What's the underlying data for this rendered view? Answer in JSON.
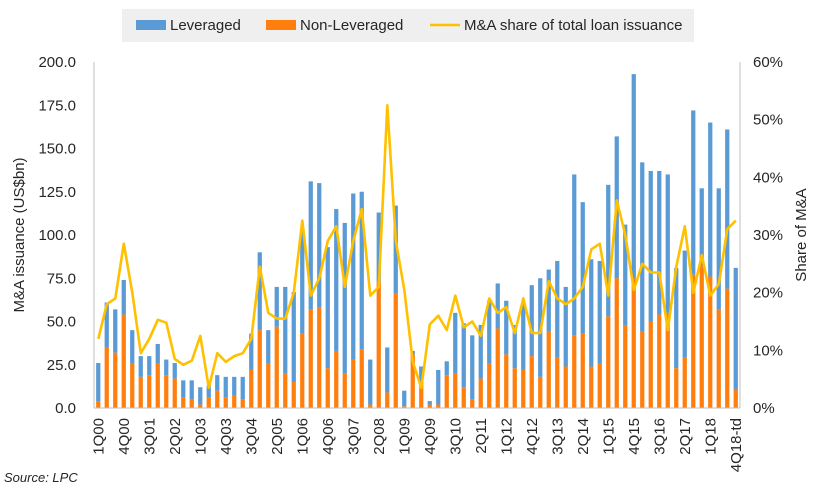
{
  "source": "Source: LPC",
  "chart_data": {
    "type": "bar",
    "stacked": true,
    "legend_position": "top",
    "legend": [
      {
        "label": "Leveraged",
        "type": "bar",
        "color": "#5B9BD5"
      },
      {
        "label": "Non-Leveraged",
        "type": "bar",
        "color": "#FF7F0E"
      },
      {
        "label": "M&A share of total loan issuance",
        "type": "line",
        "color": "#FFC000"
      }
    ],
    "ylabel_left": "M&A issuance (US$bn)",
    "ylabel_right": "Share of M&A",
    "ylim_left": [
      0,
      200
    ],
    "ylim_right": [
      0,
      60
    ],
    "yticks_left": [
      "0.0",
      "25.0",
      "50.0",
      "75.0",
      "100.0",
      "125.0",
      "150.0",
      "175.0",
      "200.0"
    ],
    "yticks_right": [
      "0%",
      "10%",
      "20%",
      "30%",
      "40%",
      "50%",
      "60%"
    ],
    "grid": false,
    "x_tick_labels": [
      "1Q00",
      "4Q00",
      "3Q01",
      "2Q02",
      "1Q03",
      "4Q03",
      "3Q04",
      "2Q05",
      "1Q06",
      "4Q06",
      "3Q07",
      "2Q08",
      "1Q09",
      "4Q09",
      "3Q10",
      "2Q11",
      "1Q12",
      "4Q12",
      "3Q13",
      "2Q14",
      "1Q15",
      "4Q15",
      "3Q16",
      "2Q17",
      "1Q18",
      "4Q18-td"
    ],
    "categories": [
      "1Q00",
      "2Q00",
      "3Q00",
      "4Q00",
      "1Q01",
      "2Q01",
      "3Q01",
      "4Q01",
      "1Q02",
      "2Q02",
      "3Q02",
      "4Q02",
      "1Q03",
      "2Q03",
      "3Q03",
      "4Q03",
      "1Q04",
      "2Q04",
      "3Q04",
      "4Q04",
      "1Q05",
      "2Q05",
      "3Q05",
      "4Q05",
      "1Q06",
      "2Q06",
      "3Q06",
      "4Q06",
      "1Q07",
      "2Q07",
      "3Q07",
      "4Q07",
      "1Q08",
      "2Q08",
      "3Q08",
      "4Q08",
      "1Q09",
      "2Q09",
      "3Q09",
      "4Q09",
      "1Q10",
      "2Q10",
      "3Q10",
      "4Q10",
      "1Q11",
      "2Q11",
      "3Q11",
      "4Q11",
      "1Q12",
      "2Q12",
      "3Q12",
      "4Q12",
      "1Q13",
      "2Q13",
      "3Q13",
      "4Q13",
      "1Q14",
      "2Q14",
      "3Q14",
      "4Q14",
      "1Q15",
      "2Q15",
      "3Q15",
      "4Q15",
      "1Q16",
      "2Q16",
      "3Q16",
      "4Q16",
      "1Q17",
      "2Q17",
      "3Q17",
      "4Q17",
      "1Q18",
      "2Q18",
      "3Q18",
      "4Q18-td"
    ],
    "series": [
      {
        "name": "Leveraged",
        "axis": "left",
        "values": [
          22,
          26,
          25,
          20,
          19,
          12,
          11,
          11,
          9,
          9,
          10,
          11,
          10,
          7,
          9,
          12,
          11,
          13,
          21,
          45,
          19,
          23,
          50,
          52,
          60,
          74,
          72,
          70,
          82,
          87,
          96,
          91,
          26,
          40,
          26,
          51,
          9,
          2,
          9,
          2,
          20,
          8,
          35,
          37,
          37,
          31,
          36,
          26,
          31,
          25,
          38,
          41,
          57,
          36,
          56,
          46,
          93,
          76,
          62,
          59,
          76,
          82,
          58,
          118,
          98,
          87,
          83,
          80,
          58,
          62,
          95,
          45,
          89,
          70,
          92,
          70
        ]
      },
      {
        "name": "Non-Leveraged",
        "axis": "left",
        "values": [
          4,
          35,
          32,
          54,
          26,
          18,
          19,
          26,
          19,
          17,
          6,
          5,
          2,
          6,
          10,
          6,
          7,
          5,
          22,
          45,
          26,
          47,
          20,
          15,
          43,
          57,
          58,
          23,
          33,
          20,
          28,
          34,
          2,
          73,
          9,
          66,
          1,
          31,
          15,
          2,
          2,
          19,
          20,
          12,
          5,
          17,
          26,
          46,
          31,
          23,
          22,
          30,
          18,
          44,
          29,
          24,
          42,
          43,
          24,
          26,
          53,
          75,
          48,
          75,
          44,
          50,
          54,
          55,
          23,
          29,
          77,
          82,
          76,
          57,
          69,
          11
        ]
      },
      {
        "name": "M&A share of total loan issuance",
        "axis": "right",
        "type": "line",
        "values": [
          12,
          18,
          19,
          28.5,
          20,
          9.5,
          12,
          15.3,
          14.8,
          8.5,
          7.5,
          8.2,
          12.5,
          3.5,
          9.5,
          8,
          9,
          9.5,
          12,
          24.5,
          16.5,
          15.5,
          15.5,
          20,
          32.5,
          19.5,
          22.5,
          29,
          31.5,
          21,
          29,
          34.5,
          19.5,
          21,
          52.5,
          29,
          20.5,
          8,
          3.5,
          14.5,
          16,
          13.5,
          19.5,
          14,
          15,
          12.5,
          19,
          16.5,
          17.5,
          13,
          19,
          13,
          13,
          22,
          19,
          18,
          19,
          21,
          27.5,
          28.5,
          19.5,
          36,
          30,
          20.5,
          25,
          23.5,
          23.5,
          13.5,
          24.5,
          31.5,
          20,
          26.5,
          19.5,
          21.5,
          31,
          32.5
        ]
      }
    ]
  }
}
